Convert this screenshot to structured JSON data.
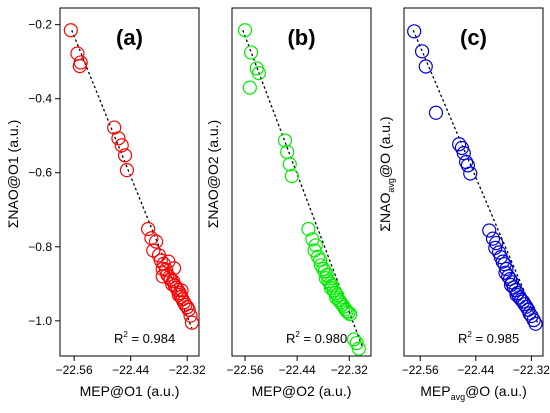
{
  "chart_data": [
    {
      "type": "scatter",
      "panel_label": "(a)",
      "color": "#ff0000",
      "xlabel": {
        "main": "MEP@O1 (a.u.)",
        "parts": [
          "MEP@O1 (a.u.)"
        ]
      },
      "ylabel": {
        "parts": [
          "ΣNAO@O1 (a.u.)"
        ]
      },
      "r2_prefix": "R",
      "r2_sup": "2",
      "r2_value": " = 0.984",
      "xticks": [
        "-22.56",
        "-22.44",
        "-22.32"
      ],
      "yticks": [
        "-0.2",
        "-0.4",
        "-0.6",
        "-0.8",
        "-1.0"
      ],
      "fit_line": {
        "x": [
          -22.565,
          -22.31
        ],
        "y": [
          -0.215,
          -1.02
        ]
      },
      "points": {
        "x": [
          -22.567,
          -22.553,
          -22.546,
          -22.548,
          -22.475,
          -22.466,
          -22.459,
          -22.452,
          -22.448,
          -22.403,
          -22.396,
          -22.386,
          -22.392,
          -22.38,
          -22.376,
          -22.37,
          -22.372,
          -22.365,
          -22.362,
          -22.358,
          -22.355,
          -22.35,
          -22.352,
          -22.346,
          -22.343,
          -22.34,
          -22.336,
          -22.338,
          -22.333,
          -22.33,
          -22.327,
          -22.324,
          -22.32,
          -22.317,
          -22.313,
          -22.31,
          -22.36,
          -22.348,
          -22.372,
          -22.332
        ],
        "y": [
          -0.215,
          -0.278,
          -0.302,
          -0.312,
          -0.478,
          -0.507,
          -0.526,
          -0.553,
          -0.593,
          -0.752,
          -0.777,
          -0.786,
          -0.81,
          -0.823,
          -0.837,
          -0.846,
          -0.86,
          -0.862,
          -0.876,
          -0.882,
          -0.888,
          -0.893,
          -0.901,
          -0.905,
          -0.911,
          -0.917,
          -0.925,
          -0.93,
          -0.936,
          -0.942,
          -0.95,
          -0.957,
          -0.963,
          -0.97,
          -0.986,
          -1.005,
          -0.84,
          -0.858,
          -0.88,
          -0.918
        ]
      },
      "xlim": [
        -22.59,
        -22.295
      ],
      "ylim": [
        -1.095,
        -0.155
      ]
    },
    {
      "type": "scatter",
      "panel_label": "(b)",
      "color": "#00ee00",
      "xlabel": {
        "main": "MEP@O2 (a.u.)",
        "parts": [
          "MEP@O2 (a.u.)"
        ]
      },
      "ylabel": {
        "parts": [
          "ΣNAO@O2 (a.u.)"
        ]
      },
      "r2_prefix": "R",
      "r2_sup": "2",
      "r2_value": " = 0.980",
      "xticks": [
        "-22.56",
        "-22.44",
        "-22.32"
      ],
      "yticks": [],
      "fit_line": {
        "x": [
          -22.565,
          -22.29
        ],
        "y": [
          -0.215,
          -1.07
        ]
      },
      "points": {
        "x": [
          -22.56,
          -22.546,
          -22.533,
          -22.528,
          -22.549,
          -22.468,
          -22.463,
          -22.457,
          -22.452,
          -22.414,
          -22.405,
          -22.397,
          -22.4,
          -22.392,
          -22.387,
          -22.385,
          -22.38,
          -22.376,
          -22.372,
          -22.374,
          -22.368,
          -22.364,
          -22.36,
          -22.362,
          -22.356,
          -22.352,
          -22.348,
          -22.35,
          -22.344,
          -22.34,
          -22.336,
          -22.333,
          -22.329,
          -22.326,
          -22.322,
          -22.318,
          -22.309,
          -22.303,
          -22.298
        ],
        "y": [
          -0.215,
          -0.275,
          -0.318,
          -0.331,
          -0.37,
          -0.513,
          -0.544,
          -0.577,
          -0.609,
          -0.752,
          -0.78,
          -0.796,
          -0.81,
          -0.827,
          -0.836,
          -0.85,
          -0.86,
          -0.866,
          -0.876,
          -0.885,
          -0.893,
          -0.9,
          -0.905,
          -0.912,
          -0.918,
          -0.925,
          -0.931,
          -0.938,
          -0.944,
          -0.95,
          -0.956,
          -0.962,
          -0.969,
          -0.974,
          -0.978,
          -0.982,
          -1.05,
          -1.06,
          -1.075
        ]
      },
      "xlim": [
        -22.59,
        -22.27
      ],
      "ylim": [
        -1.095,
        -0.155
      ]
    },
    {
      "type": "scatter",
      "panel_label": "(c)",
      "color": "#0000dd",
      "xlabel": {
        "main": "MEP",
        "parts": [
          "MEP",
          "avg",
          "@O (a.u.)"
        ]
      },
      "ylabel": {
        "parts": [
          "ΣNAO",
          "avg",
          "@O (a.u.)"
        ]
      },
      "r2_prefix": "R",
      "r2_sup": "2",
      "r2_value": " = 0.985",
      "xticks": [
        "-22.56",
        "-22.44",
        "-22.32"
      ],
      "yticks": [],
      "fit_line": {
        "x": [
          -22.575,
          -22.305
        ],
        "y": [
          -0.215,
          -1.01
        ]
      },
      "points": {
        "x": [
          -22.573,
          -22.556,
          -22.548,
          -22.526,
          -22.476,
          -22.47,
          -22.466,
          -22.461,
          -22.457,
          -22.452,
          -22.411,
          -22.403,
          -22.396,
          -22.398,
          -22.39,
          -22.386,
          -22.382,
          -22.378,
          -22.374,
          -22.376,
          -22.37,
          -22.366,
          -22.362,
          -22.364,
          -22.358,
          -22.354,
          -22.35,
          -22.352,
          -22.346,
          -22.342,
          -22.338,
          -22.335,
          -22.331,
          -22.327,
          -22.324,
          -22.32,
          -22.315,
          -22.311
        ],
        "y": [
          -0.218,
          -0.272,
          -0.313,
          -0.438,
          -0.523,
          -0.533,
          -0.547,
          -0.571,
          -0.58,
          -0.602,
          -0.756,
          -0.778,
          -0.79,
          -0.803,
          -0.815,
          -0.828,
          -0.84,
          -0.847,
          -0.86,
          -0.87,
          -0.88,
          -0.887,
          -0.896,
          -0.903,
          -0.91,
          -0.917,
          -0.925,
          -0.93,
          -0.937,
          -0.943,
          -0.948,
          -0.955,
          -0.962,
          -0.97,
          -0.98,
          -0.987,
          -0.998,
          -1.008
        ]
      },
      "xlim": [
        -22.595,
        -22.295
      ],
      "ylim": [
        -1.095,
        -0.155
      ]
    }
  ]
}
